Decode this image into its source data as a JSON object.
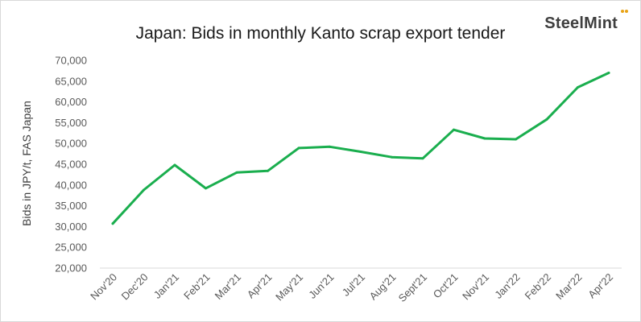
{
  "brand": {
    "name": "SteelMint",
    "accent_color": "#e8a317"
  },
  "chart_data": {
    "type": "line",
    "title": "Japan: Bids in monthly Kanto scrap export tender",
    "xlabel": "",
    "ylabel": "Bids in JPY/t, FAS Japan",
    "ylim": [
      20000,
      70000
    ],
    "yticks": [
      20000,
      25000,
      30000,
      35000,
      40000,
      45000,
      50000,
      55000,
      60000,
      65000,
      70000
    ],
    "ytick_labels": [
      "20,000",
      "25,000",
      "30,000",
      "35,000",
      "40,000",
      "45,000",
      "50,000",
      "55,000",
      "60,000",
      "65,000",
      "70,000"
    ],
    "grid": false,
    "line_color": "#1aae4e",
    "categories": [
      "Nov'20",
      "Dec'20",
      "Jan'21",
      "Feb'21",
      "Mar'21",
      "Apr'21",
      "May'21",
      "Jun'21",
      "Jul'21",
      "Aug'21",
      "Sept'21",
      "Oct'21",
      "Nov'21",
      "Jan'22",
      "Feb'22",
      "Mar'22",
      "Apr'22"
    ],
    "values": [
      30700,
      38800,
      44800,
      39200,
      43000,
      43400,
      48900,
      49200,
      48000,
      46700,
      46400,
      53300,
      51200,
      51000,
      55800,
      63500,
      67000
    ]
  }
}
